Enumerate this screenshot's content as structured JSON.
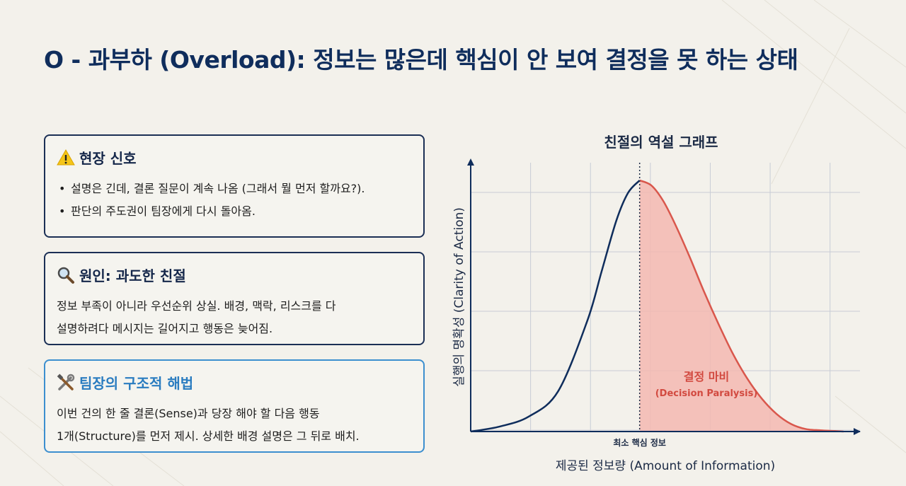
{
  "page": {
    "title": "O - 과부하 (Overload): 정보는 많은데 핵심이 안 보여 결정을 못 하는 상태"
  },
  "cards": [
    {
      "icon": "warning-icon",
      "heading": "현장 신호",
      "items": [
        "설명은 긴데, 결론 질문이 계속 나옴 (그래서 뭘 먼저 할까요?).",
        "판단의 주도권이 팀장에게 다시 돌아옴."
      ]
    },
    {
      "icon": "magnifier-icon",
      "heading": "원인: 과도한 친절",
      "lines": [
        "정보 부족이 아니라 우선순위 상실. 배경, 맥락, 리스크를 다",
        "설명하려다 메시지는 길어지고 행동은 늦어짐."
      ]
    },
    {
      "icon": "tools-icon",
      "heading": "팀장의 구조적 해법",
      "lines": [
        "이번 건의 한 줄 결론(Sense)과 당장 해야 할 다음 행동",
        "1개(Structure)를 먼저 제시. 상세한 배경 설명은 그 뒤로 배치."
      ]
    }
  ],
  "chart_data": {
    "type": "line",
    "title": "친절의 역설 그래프",
    "xlabel": "제공된 정보량 (Amount of Information)",
    "ylabel": "실행의 명확성 (Clarity of Action)",
    "xlim": [
      0,
      130
    ],
    "ylim": [
      0,
      100
    ],
    "grid": true,
    "peak_x": 58,
    "peak_y": 100,
    "marker_label": "최소 핵심 정보",
    "shaded_region_label": "결정 마비",
    "shaded_region_sublabel": "(Decision Paralysis)",
    "series": [
      {
        "name": "clarity",
        "x": [
          0,
          10,
          20,
          30,
          40,
          45,
          50,
          54,
          58,
          62,
          66,
          70,
          75,
          80,
          85,
          90,
          95,
          100,
          105,
          110,
          115,
          120,
          125,
          128
        ],
        "y": [
          0,
          2,
          6,
          16,
          44,
          64,
          84,
          95,
          100,
          98,
          92,
          83,
          70,
          56,
          43,
          31,
          21,
          13,
          7,
          3,
          1,
          0.5,
          0.2,
          0
        ]
      }
    ],
    "colors": {
      "curve": "#0f2d5c",
      "right_curve": "#d9574c",
      "fill": "#f3b9b2",
      "label": "#d24a40"
    }
  }
}
